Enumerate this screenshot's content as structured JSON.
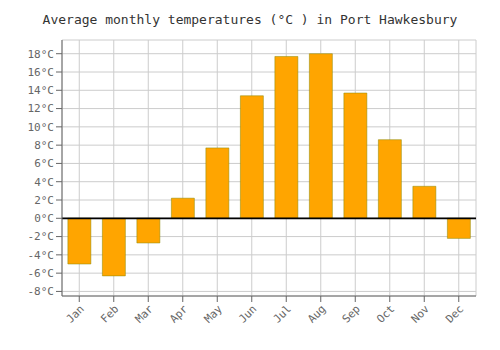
{
  "chart_data": {
    "type": "bar",
    "title": "Average monthly temperatures (°C ) in Port Hawkesbury",
    "categories": [
      "Jan",
      "Feb",
      "Mar",
      "Apr",
      "May",
      "Jun",
      "Jul",
      "Aug",
      "Sep",
      "Oct",
      "Nov",
      "Dec"
    ],
    "values": [
      -5.0,
      -6.3,
      -2.7,
      2.2,
      7.7,
      13.4,
      17.7,
      18.0,
      13.7,
      8.6,
      3.5,
      -2.2
    ],
    "color": "#FFA500",
    "ylim": [
      -8.5,
      19.5
    ],
    "yticks": [
      {
        "value": -8,
        "label": "-8°C"
      },
      {
        "value": -6,
        "label": "-6°C"
      },
      {
        "value": -4,
        "label": "-4°C"
      },
      {
        "value": -2,
        "label": "-2°C"
      },
      {
        "value": 0,
        "label": "0°C"
      },
      {
        "value": 2,
        "label": "2°C"
      },
      {
        "value": 4,
        "label": "4°C"
      },
      {
        "value": 6,
        "label": "6°C"
      },
      {
        "value": 8,
        "label": "8°C"
      },
      {
        "value": 10,
        "label": "10°C"
      },
      {
        "value": 12,
        "label": "12°C"
      },
      {
        "value": 14,
        "label": "14°C"
      },
      {
        "value": 16,
        "label": "16°C"
      },
      {
        "value": 18,
        "label": "18°C"
      }
    ],
    "grid": true
  }
}
